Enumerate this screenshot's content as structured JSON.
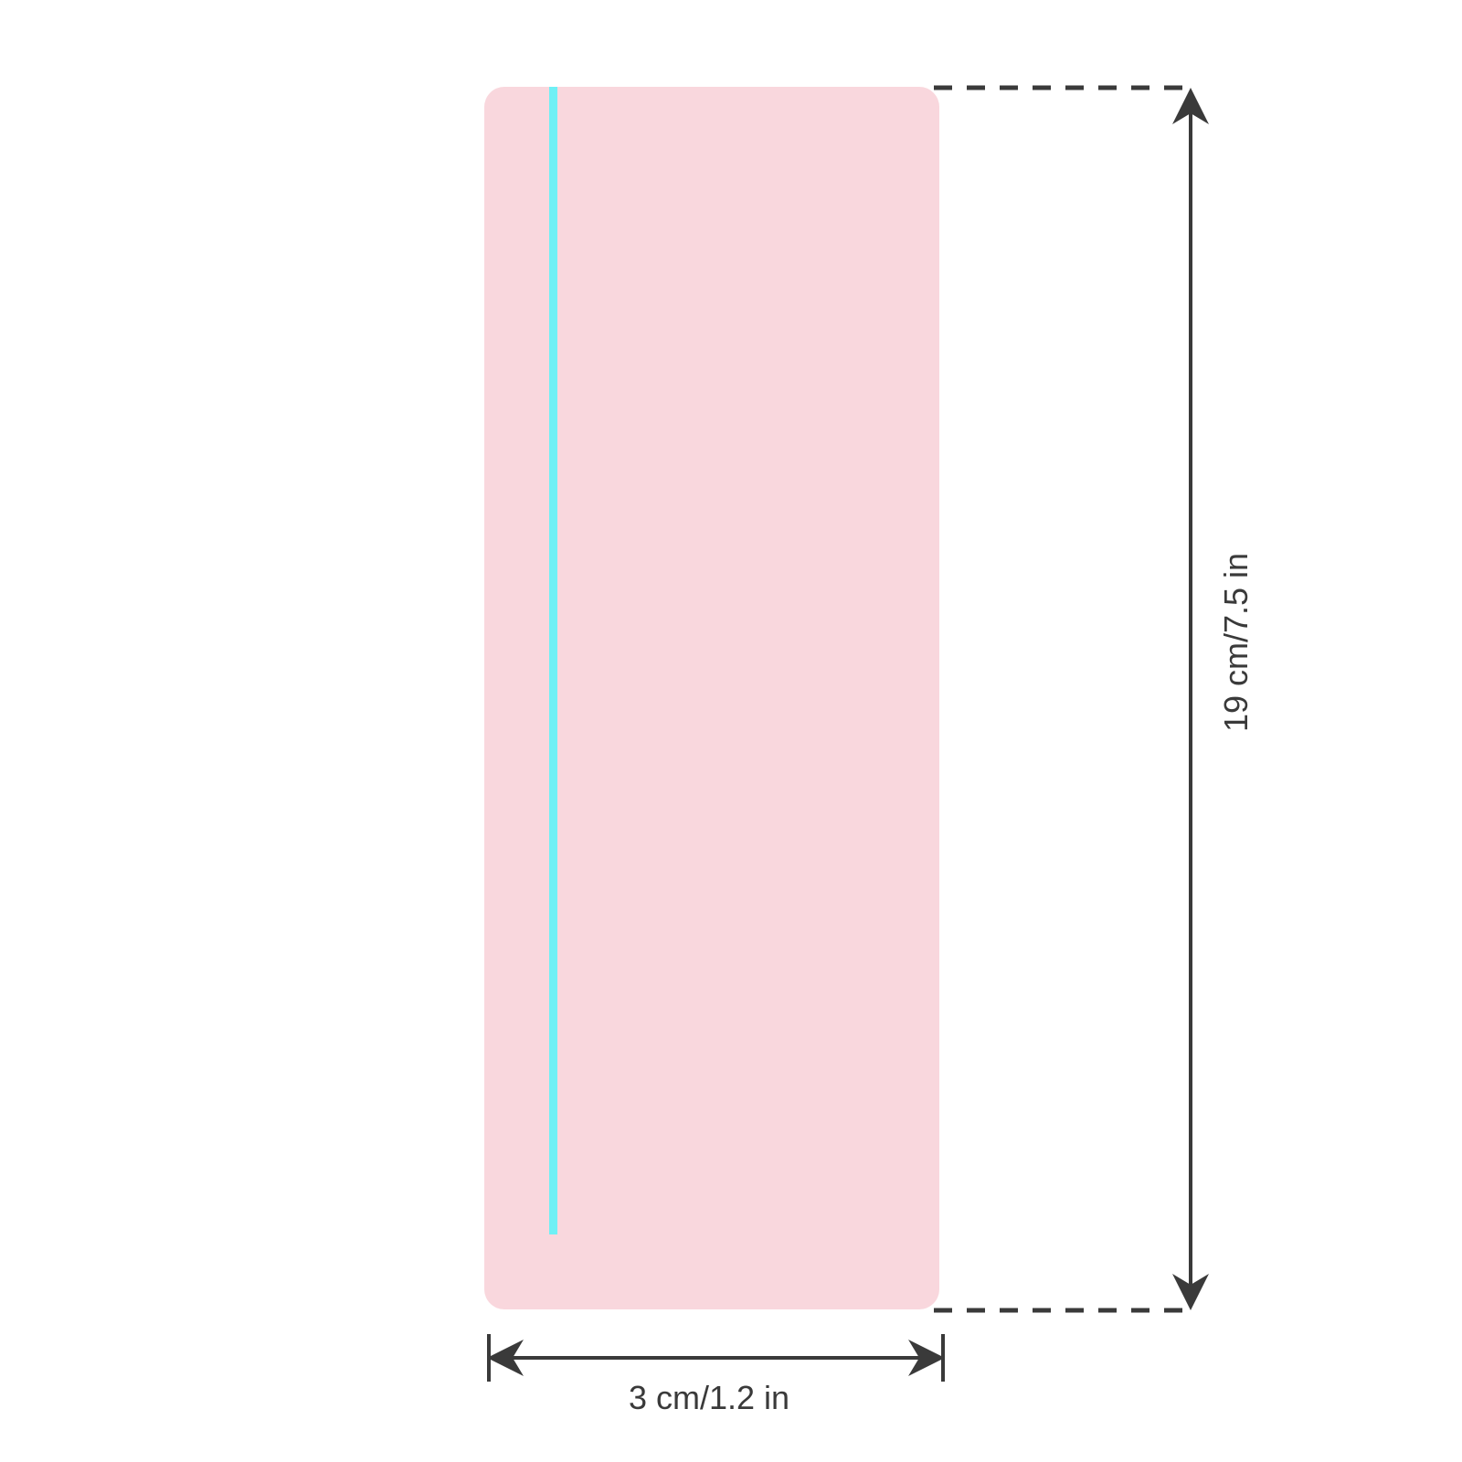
{
  "diagram": {
    "width_label": "3 cm/1.2 in",
    "height_label": "19 cm/7.5 in"
  },
  "colors": {
    "strip_fill": "#f9d7dd",
    "accent_line": "#6ff0f5",
    "dimension_ink": "#3a3a3a",
    "background": "#ffffff"
  }
}
